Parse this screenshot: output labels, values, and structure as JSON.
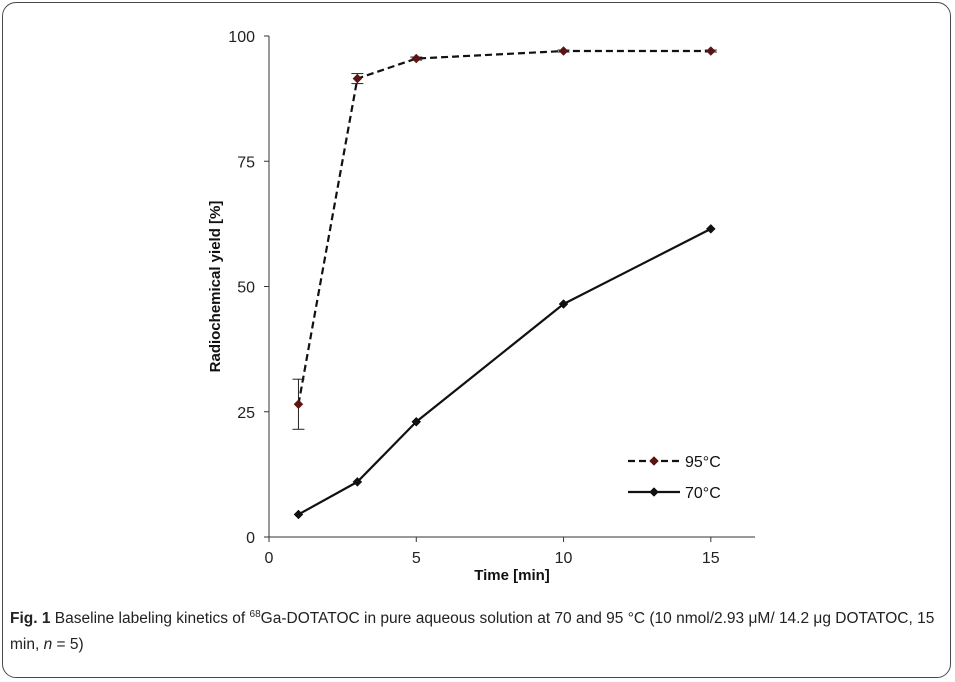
{
  "chart_data": {
    "type": "line",
    "xlabel": "Time [min]",
    "ylabel": "Radiochemical yield [%]",
    "xlim": [
      0,
      16.5
    ],
    "ylim": [
      0,
      100
    ],
    "xticks": [
      0,
      5,
      10,
      15
    ],
    "yticks": [
      0,
      25,
      50,
      75,
      100
    ],
    "grid": false,
    "legend": "bottom-right",
    "series": [
      {
        "name": "95°C",
        "style": "dashed",
        "color": "#111111",
        "marker_color": "#5a1414",
        "x": [
          1,
          3,
          5,
          10,
          15
        ],
        "y": [
          26.5,
          91.5,
          95.5,
          97,
          97
        ],
        "error": [
          5,
          1,
          0.3,
          0.2,
          0.2
        ]
      },
      {
        "name": "70°C",
        "style": "solid",
        "color": "#111111",
        "marker_color": "#111111",
        "x": [
          1,
          3,
          5,
          10,
          15
        ],
        "y": [
          4.5,
          11,
          23,
          46.5,
          61.5
        ]
      }
    ]
  },
  "caption": {
    "label": "Fig. 1",
    "text_before": " Baseline labeling kinetics of ",
    "isotope_sup": "68",
    "text_after": "Ga-DOTATOC in pure aqueous solution at 70 and 95 °C (10 nmol/2.93 μM/ 14.2 μg DOTATOC, 15 min, ",
    "n_symbol": "n",
    "n_value": " = 5)"
  }
}
